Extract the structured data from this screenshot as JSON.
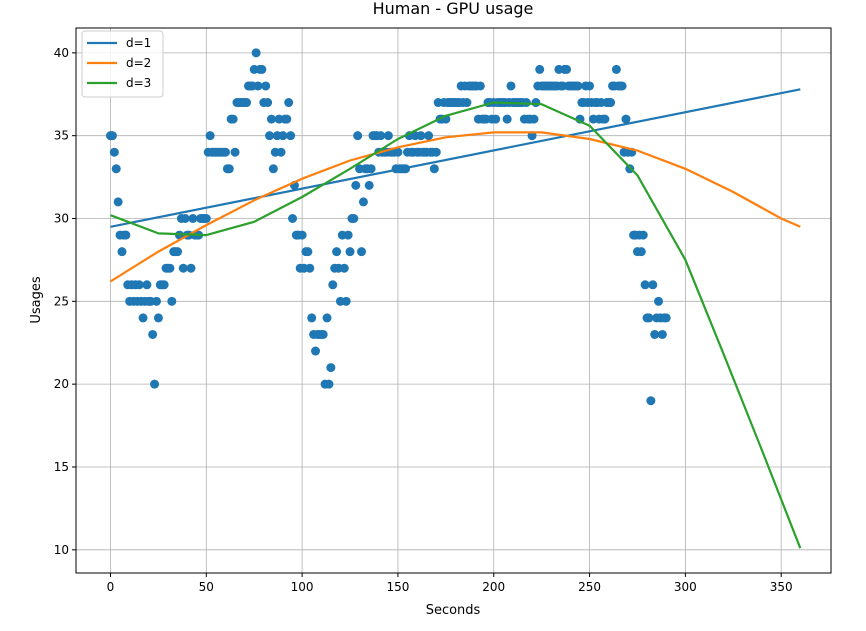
{
  "chart_data": {
    "type": "scatter",
    "title": "Human - GPU usage",
    "xlabel": "Seconds",
    "ylabel": "Usages",
    "xlim": [
      -18,
      376
    ],
    "ylim": [
      8.6,
      41.5
    ],
    "xticks": [
      0,
      50,
      100,
      150,
      200,
      250,
      300,
      350
    ],
    "yticks": [
      10,
      15,
      20,
      25,
      30,
      35,
      40
    ],
    "grid": true,
    "legend_position": "top-left",
    "colors": {
      "points": "#1f77b4",
      "d1": "#1f77b4",
      "d2": "#ff7f0e",
      "d3": "#2ca02c",
      "grid": "#b0b0b0"
    },
    "series": [
      {
        "name": "d=1",
        "type": "line",
        "x": [
          0,
          360
        ],
        "y": [
          29.5,
          37.8
        ]
      },
      {
        "name": "d=2",
        "type": "line",
        "x": [
          0,
          25,
          50,
          75,
          100,
          125,
          150,
          175,
          200,
          225,
          250,
          275,
          300,
          325,
          350,
          360
        ],
        "y": [
          26.2,
          28.0,
          29.6,
          31.1,
          32.4,
          33.5,
          34.3,
          34.9,
          35.2,
          35.2,
          34.8,
          34.1,
          33.0,
          31.6,
          30.0,
          29.5
        ]
      },
      {
        "name": "d=3",
        "type": "line",
        "x": [
          0,
          25,
          50,
          75,
          100,
          125,
          150,
          175,
          200,
          225,
          250,
          275,
          300,
          320,
          340,
          360
        ],
        "y": [
          30.2,
          29.1,
          29.0,
          29.8,
          31.3,
          33.0,
          34.8,
          36.2,
          37.0,
          36.9,
          35.6,
          32.6,
          27.5,
          21.8,
          16.0,
          10.1
        ]
      }
    ],
    "points": [
      [
        0,
        35
      ],
      [
        1,
        35
      ],
      [
        2,
        34
      ],
      [
        3,
        33
      ],
      [
        4,
        31
      ],
      [
        5,
        29
      ],
      [
        6,
        28
      ],
      [
        7,
        29
      ],
      [
        8,
        29
      ],
      [
        9,
        26
      ],
      [
        10,
        25
      ],
      [
        11,
        26
      ],
      [
        12,
        25
      ],
      [
        13,
        26
      ],
      [
        14,
        25
      ],
      [
        15,
        26
      ],
      [
        16,
        25
      ],
      [
        17,
        24
      ],
      [
        18,
        25
      ],
      [
        19,
        26
      ],
      [
        20,
        25
      ],
      [
        21,
        25
      ],
      [
        22,
        23
      ],
      [
        23,
        20
      ],
      [
        24,
        25
      ],
      [
        25,
        24
      ],
      [
        26,
        26
      ],
      [
        27,
        26
      ],
      [
        28,
        26
      ],
      [
        29,
        27
      ],
      [
        30,
        27
      ],
      [
        31,
        27
      ],
      [
        32,
        25
      ],
      [
        33,
        28
      ],
      [
        34,
        28
      ],
      [
        35,
        28
      ],
      [
        36,
        29
      ],
      [
        37,
        30
      ],
      [
        38,
        27
      ],
      [
        39,
        30
      ],
      [
        40,
        29
      ],
      [
        41,
        29
      ],
      [
        42,
        27
      ],
      [
        43,
        30
      ],
      [
        44,
        29
      ],
      [
        45,
        29
      ],
      [
        46,
        29
      ],
      [
        47,
        30
      ],
      [
        48,
        30
      ],
      [
        49,
        30
      ],
      [
        50,
        30
      ],
      [
        51,
        34
      ],
      [
        52,
        35
      ],
      [
        53,
        34
      ],
      [
        54,
        34
      ],
      [
        55,
        34
      ],
      [
        56,
        34
      ],
      [
        57,
        34
      ],
      [
        58,
        34
      ],
      [
        59,
        34
      ],
      [
        60,
        34
      ],
      [
        61,
        33
      ],
      [
        62,
        33
      ],
      [
        63,
        36
      ],
      [
        64,
        36
      ],
      [
        65,
        34
      ],
      [
        66,
        37
      ],
      [
        67,
        37
      ],
      [
        68,
        37
      ],
      [
        69,
        37
      ],
      [
        70,
        37
      ],
      [
        71,
        37
      ],
      [
        72,
        38
      ],
      [
        73,
        38
      ],
      [
        74,
        38
      ],
      [
        75,
        39
      ],
      [
        76,
        40
      ],
      [
        77,
        38
      ],
      [
        78,
        39
      ],
      [
        79,
        39
      ],
      [
        80,
        37
      ],
      [
        81,
        38
      ],
      [
        82,
        37
      ],
      [
        83,
        35
      ],
      [
        84,
        36
      ],
      [
        85,
        33
      ],
      [
        86,
        34
      ],
      [
        87,
        35
      ],
      [
        88,
        36
      ],
      [
        89,
        34
      ],
      [
        90,
        35
      ],
      [
        91,
        36
      ],
      [
        92,
        36
      ],
      [
        93,
        37
      ],
      [
        94,
        35
      ],
      [
        95,
        30
      ],
      [
        96,
        32
      ],
      [
        97,
        29
      ],
      [
        98,
        29
      ],
      [
        99,
        27
      ],
      [
        100,
        29
      ],
      [
        101,
        27
      ],
      [
        102,
        28
      ],
      [
        103,
        28
      ],
      [
        104,
        27
      ],
      [
        105,
        24
      ],
      [
        106,
        23
      ],
      [
        107,
        22
      ],
      [
        108,
        23
      ],
      [
        109,
        23
      ],
      [
        110,
        23
      ],
      [
        111,
        23
      ],
      [
        112,
        20
      ],
      [
        113,
        24
      ],
      [
        114,
        20
      ],
      [
        115,
        21
      ],
      [
        116,
        26
      ],
      [
        117,
        27
      ],
      [
        118,
        28
      ],
      [
        119,
        27
      ],
      [
        120,
        25
      ],
      [
        121,
        29
      ],
      [
        122,
        27
      ],
      [
        123,
        25
      ],
      [
        124,
        29
      ],
      [
        125,
        28
      ],
      [
        126,
        30
      ],
      [
        127,
        30
      ],
      [
        128,
        32
      ],
      [
        129,
        35
      ],
      [
        130,
        33
      ],
      [
        131,
        28
      ],
      [
        132,
        31
      ],
      [
        133,
        33
      ],
      [
        134,
        33
      ],
      [
        135,
        32
      ],
      [
        136,
        33
      ],
      [
        137,
        35
      ],
      [
        138,
        35
      ],
      [
        139,
        35
      ],
      [
        140,
        34
      ],
      [
        141,
        35
      ],
      [
        142,
        34
      ],
      [
        143,
        34
      ],
      [
        144,
        34
      ],
      [
        145,
        35
      ],
      [
        146,
        34
      ],
      [
        147,
        34
      ],
      [
        148,
        34
      ],
      [
        149,
        33
      ],
      [
        150,
        34
      ],
      [
        151,
        33
      ],
      [
        152,
        33
      ],
      [
        153,
        33
      ],
      [
        154,
        33
      ],
      [
        155,
        34
      ],
      [
        156,
        35
      ],
      [
        157,
        34
      ],
      [
        158,
        34
      ],
      [
        159,
        35
      ],
      [
        160,
        34
      ],
      [
        161,
        34
      ],
      [
        162,
        35
      ],
      [
        163,
        34
      ],
      [
        164,
        34
      ],
      [
        165,
        34
      ],
      [
        166,
        35
      ],
      [
        167,
        34
      ],
      [
        168,
        34
      ],
      [
        169,
        33
      ],
      [
        170,
        34
      ],
      [
        171,
        37
      ],
      [
        172,
        36
      ],
      [
        173,
        36
      ],
      [
        174,
        37
      ],
      [
        175,
        36
      ],
      [
        176,
        37
      ],
      [
        177,
        37
      ],
      [
        178,
        37
      ],
      [
        179,
        37
      ],
      [
        180,
        37
      ],
      [
        181,
        37
      ],
      [
        182,
        37
      ],
      [
        183,
        38
      ],
      [
        184,
        37
      ],
      [
        185,
        38
      ],
      [
        186,
        37
      ],
      [
        187,
        38
      ],
      [
        188,
        38
      ],
      [
        189,
        38
      ],
      [
        190,
        38
      ],
      [
        191,
        38
      ],
      [
        192,
        36
      ],
      [
        193,
        38
      ],
      [
        194,
        36
      ],
      [
        195,
        36
      ],
      [
        196,
        36
      ],
      [
        197,
        37
      ],
      [
        198,
        37
      ],
      [
        199,
        36
      ],
      [
        200,
        37
      ],
      [
        201,
        36
      ],
      [
        202,
        37
      ],
      [
        203,
        37
      ],
      [
        204,
        37
      ],
      [
        205,
        37
      ],
      [
        206,
        37
      ],
      [
        207,
        36
      ],
      [
        208,
        37
      ],
      [
        209,
        38
      ],
      [
        210,
        37
      ],
      [
        211,
        37
      ],
      [
        212,
        37
      ],
      [
        213,
        37
      ],
      [
        214,
        37
      ],
      [
        215,
        37
      ],
      [
        216,
        36
      ],
      [
        217,
        37
      ],
      [
        218,
        36
      ],
      [
        219,
        36
      ],
      [
        220,
        35
      ],
      [
        221,
        36
      ],
      [
        222,
        37
      ],
      [
        223,
        38
      ],
      [
        224,
        39
      ],
      [
        225,
        38
      ],
      [
        226,
        38
      ],
      [
        227,
        38
      ],
      [
        228,
        38
      ],
      [
        229,
        38
      ],
      [
        230,
        38
      ],
      [
        231,
        38
      ],
      [
        232,
        38
      ],
      [
        233,
        38
      ],
      [
        234,
        39
      ],
      [
        235,
        38
      ],
      [
        236,
        38
      ],
      [
        237,
        39
      ],
      [
        238,
        39
      ],
      [
        239,
        38
      ],
      [
        240,
        38
      ],
      [
        241,
        38
      ],
      [
        242,
        38
      ],
      [
        243,
        38
      ],
      [
        244,
        38
      ],
      [
        245,
        36
      ],
      [
        246,
        37
      ],
      [
        247,
        37
      ],
      [
        248,
        38
      ],
      [
        249,
        37
      ],
      [
        250,
        38
      ],
      [
        251,
        37
      ],
      [
        252,
        36
      ],
      [
        253,
        37
      ],
      [
        254,
        37
      ],
      [
        255,
        36
      ],
      [
        256,
        37
      ],
      [
        257,
        36
      ],
      [
        258,
        36
      ],
      [
        259,
        37
      ],
      [
        260,
        37
      ],
      [
        261,
        37
      ],
      [
        262,
        38
      ],
      [
        263,
        38
      ],
      [
        264,
        39
      ],
      [
        265,
        38
      ],
      [
        266,
        38
      ],
      [
        267,
        38
      ],
      [
        268,
        34
      ],
      [
        269,
        36
      ],
      [
        270,
        34
      ],
      [
        271,
        33
      ],
      [
        272,
        34
      ],
      [
        273,
        29
      ],
      [
        274,
        29
      ],
      [
        275,
        28
      ],
      [
        276,
        29
      ],
      [
        277,
        28
      ],
      [
        278,
        29
      ],
      [
        279,
        26
      ],
      [
        280,
        24
      ],
      [
        281,
        24
      ],
      [
        282,
        19
      ],
      [
        283,
        26
      ],
      [
        284,
        23
      ],
      [
        285,
        24
      ],
      [
        286,
        25
      ],
      [
        287,
        24
      ],
      [
        288,
        23
      ],
      [
        289,
        24
      ],
      [
        290,
        24
      ]
    ]
  }
}
